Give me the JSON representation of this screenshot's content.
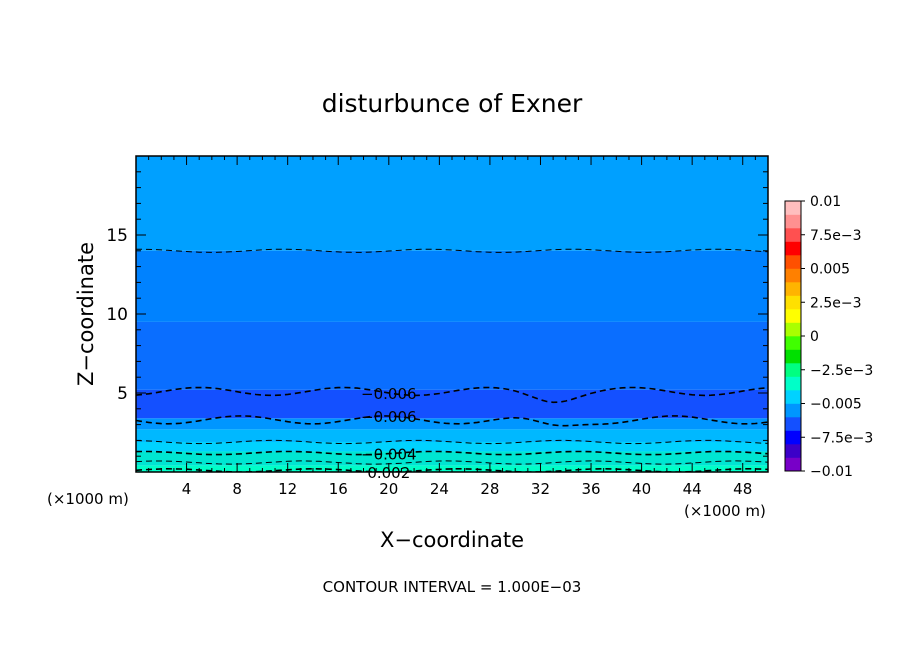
{
  "chart_data": {
    "type": "heatmap",
    "title": "disturbunce of Exner",
    "xlabel": "X−coordinate",
    "ylabel": "Z−coordinate",
    "x_unit_left": "(×1000 m)",
    "x_unit_right": "(×1000 m)",
    "footer": "CONTOUR INTERVAL = 1.000E−03",
    "xlim": [
      0,
      50
    ],
    "ylim": [
      0,
      20
    ],
    "x_ticks": [
      4,
      8,
      12,
      16,
      20,
      24,
      28,
      32,
      36,
      40,
      44,
      48
    ],
    "y_ticks": [
      5,
      10,
      15
    ],
    "colorbar": {
      "range": [
        -0.01,
        0.01
      ],
      "tick_values": [
        0.01,
        0.0075,
        0.005,
        0.0025,
        0,
        -0.0025,
        -0.005,
        -0.0075,
        -0.01
      ],
      "tick_labels": [
        "0.01",
        "7.5e−3",
        "0.005",
        "2.5e−3",
        "0",
        "−2.5e−3",
        "−0.005",
        "−7.5e−3",
        "−0.01"
      ],
      "colors": [
        "#7800c8",
        "#3c00c8",
        "#0000ff",
        "#1450ff",
        "#0096ff",
        "#00d2ff",
        "#00ffc8",
        "#00ff80",
        "#00e000",
        "#40ff00",
        "#aaff00",
        "#ffff00",
        "#ffe000",
        "#ffb400",
        "#ff8000",
        "#ff5000",
        "#ff0000",
        "#ff5050",
        "#ff9090",
        "#ffbebe"
      ]
    },
    "bands": [
      {
        "z_min": 0.0,
        "z_max": 0.4,
        "color": "#00ffc8"
      },
      {
        "z_min": 0.4,
        "z_max": 1.3,
        "color": "#00e6d2"
      },
      {
        "z_min": 1.3,
        "z_max": 1.9,
        "color": "#00d2ff"
      },
      {
        "z_min": 1.9,
        "z_max": 2.7,
        "color": "#00b8ff"
      },
      {
        "z_min": 2.7,
        "z_max": 3.4,
        "color": "#0096ff"
      },
      {
        "z_min": 3.4,
        "z_max": 5.2,
        "color": "#1450ff"
      },
      {
        "z_min": 5.2,
        "z_max": 9.5,
        "color": "#0a6eff"
      },
      {
        "z_min": 9.5,
        "z_max": 14.0,
        "color": "#0082ff"
      },
      {
        "z_min": 14.0,
        "z_max": 20.0,
        "color": "#00a0ff"
      }
    ],
    "contour_lines": [
      {
        "z": 14.0,
        "label": ""
      },
      {
        "z": 5.1,
        "label": "−0.006"
      },
      {
        "z": 3.3,
        "label": "−0.006"
      },
      {
        "z": 1.9,
        "label": ""
      },
      {
        "z": 1.2,
        "label": "−0.004"
      },
      {
        "z": 0.6,
        "label": ""
      },
      {
        "z": 0.1,
        "label": "0.002"
      }
    ],
    "contour_label_x": 20
  }
}
